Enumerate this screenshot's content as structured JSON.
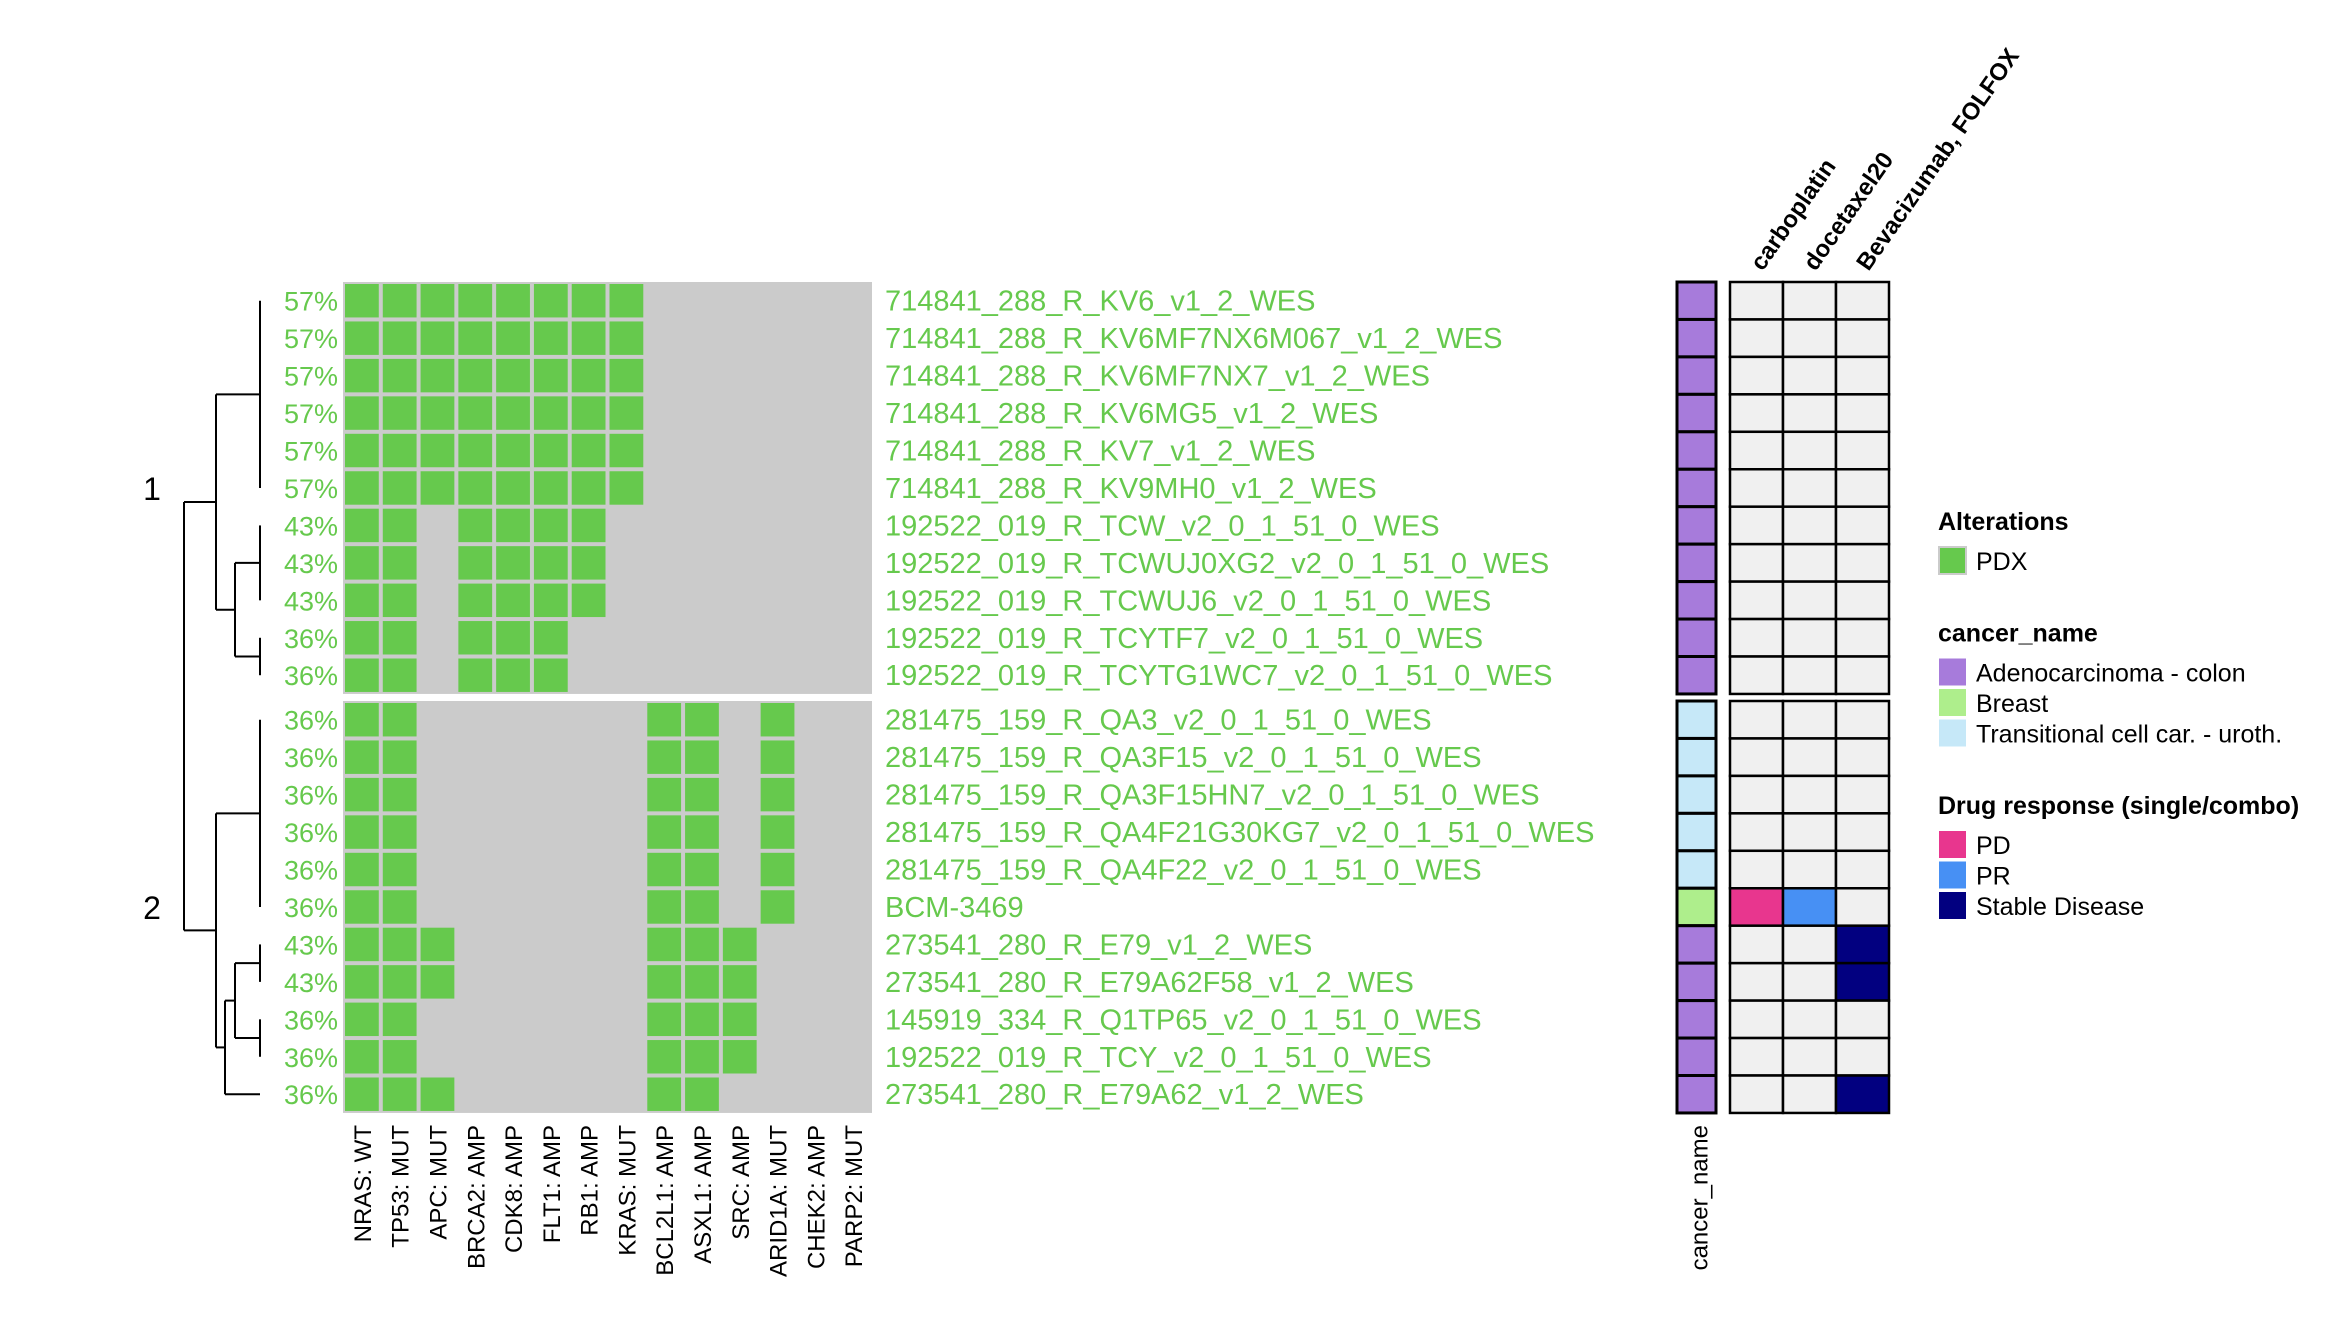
{
  "chart_data": {
    "type": "heatmap",
    "title": "",
    "columns": [
      "NRAS: WT",
      "TP53: MUT",
      "APC: MUT",
      "BRCA2: AMP",
      "CDK8: AMP",
      "FLT1: AMP",
      "RB1: AMP",
      "KRAS: MUT",
      "BCL2L1: AMP",
      "ASXL1: AMP",
      "SRC: AMP",
      "ARID1A: MUT",
      "CHEK2: AMP",
      "PARP2: MUT"
    ],
    "clusters": [
      {
        "label": "1",
        "rows": [
          {
            "sample": "714841_288_R_KV6_v1_2_WES",
            "pct": "57%",
            "alt": [
              1,
              1,
              1,
              1,
              1,
              1,
              1,
              1,
              0,
              0,
              0,
              0,
              0,
              0
            ],
            "cancer": "Adenocarcinoma - colon",
            "drug": [
              "",
              "",
              ""
            ]
          },
          {
            "sample": "714841_288_R_KV6MF7NX6M067_v1_2_WES",
            "pct": "57%",
            "alt": [
              1,
              1,
              1,
              1,
              1,
              1,
              1,
              1,
              0,
              0,
              0,
              0,
              0,
              0
            ],
            "cancer": "Adenocarcinoma - colon",
            "drug": [
              "",
              "",
              ""
            ]
          },
          {
            "sample": "714841_288_R_KV6MF7NX7_v1_2_WES",
            "pct": "57%",
            "alt": [
              1,
              1,
              1,
              1,
              1,
              1,
              1,
              1,
              0,
              0,
              0,
              0,
              0,
              0
            ],
            "cancer": "Adenocarcinoma - colon",
            "drug": [
              "",
              "",
              ""
            ]
          },
          {
            "sample": "714841_288_R_KV6MG5_v1_2_WES",
            "pct": "57%",
            "alt": [
              1,
              1,
              1,
              1,
              1,
              1,
              1,
              1,
              0,
              0,
              0,
              0,
              0,
              0
            ],
            "cancer": "Adenocarcinoma - colon",
            "drug": [
              "",
              "",
              ""
            ]
          },
          {
            "sample": "714841_288_R_KV7_v1_2_WES",
            "pct": "57%",
            "alt": [
              1,
              1,
              1,
              1,
              1,
              1,
              1,
              1,
              0,
              0,
              0,
              0,
              0,
              0
            ],
            "cancer": "Adenocarcinoma - colon",
            "drug": [
              "",
              "",
              ""
            ]
          },
          {
            "sample": "714841_288_R_KV9MH0_v1_2_WES",
            "pct": "57%",
            "alt": [
              1,
              1,
              1,
              1,
              1,
              1,
              1,
              1,
              0,
              0,
              0,
              0,
              0,
              0
            ],
            "cancer": "Adenocarcinoma - colon",
            "drug": [
              "",
              "",
              ""
            ]
          },
          {
            "sample": "192522_019_R_TCW_v2_0_1_51_0_WES",
            "pct": "43%",
            "alt": [
              1,
              1,
              0,
              1,
              1,
              1,
              1,
              0,
              0,
              0,
              0,
              0,
              0,
              0
            ],
            "cancer": "Adenocarcinoma - colon",
            "drug": [
              "",
              "",
              ""
            ]
          },
          {
            "sample": "192522_019_R_TCWUJ0XG2_v2_0_1_51_0_WES",
            "pct": "43%",
            "alt": [
              1,
              1,
              0,
              1,
              1,
              1,
              1,
              0,
              0,
              0,
              0,
              0,
              0,
              0
            ],
            "cancer": "Adenocarcinoma - colon",
            "drug": [
              "",
              "",
              ""
            ]
          },
          {
            "sample": "192522_019_R_TCWUJ6_v2_0_1_51_0_WES",
            "pct": "43%",
            "alt": [
              1,
              1,
              0,
              1,
              1,
              1,
              1,
              0,
              0,
              0,
              0,
              0,
              0,
              0
            ],
            "cancer": "Adenocarcinoma - colon",
            "drug": [
              "",
              "",
              ""
            ]
          },
          {
            "sample": "192522_019_R_TCYTF7_v2_0_1_51_0_WES",
            "pct": "36%",
            "alt": [
              1,
              1,
              0,
              1,
              1,
              1,
              0,
              0,
              0,
              0,
              0,
              0,
              0,
              0
            ],
            "cancer": "Adenocarcinoma - colon",
            "drug": [
              "",
              "",
              ""
            ]
          },
          {
            "sample": "192522_019_R_TCYTG1WC7_v2_0_1_51_0_WES",
            "pct": "36%",
            "alt": [
              1,
              1,
              0,
              1,
              1,
              1,
              0,
              0,
              0,
              0,
              0,
              0,
              0,
              0
            ],
            "cancer": "Adenocarcinoma - colon",
            "drug": [
              "",
              "",
              ""
            ]
          }
        ]
      },
      {
        "label": "2",
        "rows": [
          {
            "sample": "281475_159_R_QA3_v2_0_1_51_0_WES",
            "pct": "36%",
            "alt": [
              1,
              1,
              0,
              0,
              0,
              0,
              0,
              0,
              1,
              1,
              0,
              1,
              0,
              0
            ],
            "cancer": "Transitional cell car. - uroth.",
            "drug": [
              "",
              "",
              ""
            ]
          },
          {
            "sample": "281475_159_R_QA3F15_v2_0_1_51_0_WES",
            "pct": "36%",
            "alt": [
              1,
              1,
              0,
              0,
              0,
              0,
              0,
              0,
              1,
              1,
              0,
              1,
              0,
              0
            ],
            "cancer": "Transitional cell car. - uroth.",
            "drug": [
              "",
              "",
              ""
            ]
          },
          {
            "sample": "281475_159_R_QA3F15HN7_v2_0_1_51_0_WES",
            "pct": "36%",
            "alt": [
              1,
              1,
              0,
              0,
              0,
              0,
              0,
              0,
              1,
              1,
              0,
              1,
              0,
              0
            ],
            "cancer": "Transitional cell car. - uroth.",
            "drug": [
              "",
              "",
              ""
            ]
          },
          {
            "sample": "281475_159_R_QA4F21G30KG7_v2_0_1_51_0_WES",
            "pct": "36%",
            "alt": [
              1,
              1,
              0,
              0,
              0,
              0,
              0,
              0,
              1,
              1,
              0,
              1,
              0,
              0
            ],
            "cancer": "Transitional cell car. - uroth.",
            "drug": [
              "",
              "",
              ""
            ]
          },
          {
            "sample": "281475_159_R_QA4F22_v2_0_1_51_0_WES",
            "pct": "36%",
            "alt": [
              1,
              1,
              0,
              0,
              0,
              0,
              0,
              0,
              1,
              1,
              0,
              1,
              0,
              0
            ],
            "cancer": "Transitional cell car. - uroth.",
            "drug": [
              "",
              "",
              ""
            ]
          },
          {
            "sample": "BCM-3469",
            "pct": "36%",
            "alt": [
              1,
              1,
              0,
              0,
              0,
              0,
              0,
              0,
              1,
              1,
              0,
              1,
              0,
              0
            ],
            "cancer": "Breast",
            "drug": [
              "PD",
              "PR",
              ""
            ]
          },
          {
            "sample": "273541_280_R_E79_v1_2_WES",
            "pct": "43%",
            "alt": [
              1,
              1,
              1,
              0,
              0,
              0,
              0,
              0,
              1,
              1,
              1,
              0,
              0,
              0
            ],
            "cancer": "Adenocarcinoma - colon",
            "drug": [
              "",
              "",
              "Stable Disease"
            ]
          },
          {
            "sample": "273541_280_R_E79A62F58_v1_2_WES",
            "pct": "43%",
            "alt": [
              1,
              1,
              1,
              0,
              0,
              0,
              0,
              0,
              1,
              1,
              1,
              0,
              0,
              0
            ],
            "cancer": "Adenocarcinoma - colon",
            "drug": [
              "",
              "",
              "Stable Disease"
            ]
          },
          {
            "sample": "145919_334_R_Q1TP65_v2_0_1_51_0_WES",
            "pct": "36%",
            "alt": [
              1,
              1,
              0,
              0,
              0,
              0,
              0,
              0,
              1,
              1,
              1,
              0,
              0,
              0
            ],
            "cancer": "Adenocarcinoma - colon",
            "drug": [
              "",
              "",
              ""
            ]
          },
          {
            "sample": "192522_019_R_TCY_v2_0_1_51_0_WES",
            "pct": "36%",
            "alt": [
              1,
              1,
              0,
              0,
              0,
              0,
              0,
              0,
              1,
              1,
              1,
              0,
              0,
              0
            ],
            "cancer": "Adenocarcinoma - colon",
            "drug": [
              "",
              "",
              ""
            ]
          },
          {
            "sample": "273541_280_R_E79A62_v1_2_WES",
            "pct": "36%",
            "alt": [
              1,
              1,
              1,
              0,
              0,
              0,
              0,
              0,
              1,
              1,
              0,
              0,
              0,
              0
            ],
            "cancer": "Adenocarcinoma - colon",
            "drug": [
              "",
              "",
              "Stable Disease"
            ]
          }
        ]
      }
    ],
    "annotation_column_label": "cancer_name",
    "drug_columns": [
      "carboplatin",
      "docetaxel20",
      "Bevacizumab, FOLFOX"
    ],
    "legends": [
      {
        "title": "Alterations",
        "items": [
          {
            "label": "PDX",
            "color": "#66c94d"
          }
        ]
      },
      {
        "title": "cancer_name",
        "items": [
          {
            "label": "Adenocarcinoma - colon",
            "color": "#a77bdb"
          },
          {
            "label": "Breast",
            "color": "#aeee8c"
          },
          {
            "label": "Transitional cell car. - uroth.",
            "color": "#c6e8f8"
          }
        ]
      },
      {
        "title": "Drug response (single/combo)",
        "items": [
          {
            "label": "PD",
            "color": "#e8368e"
          },
          {
            "label": "PR",
            "color": "#4790f4"
          },
          {
            "label": "Stable Disease",
            "color": "#020080"
          }
        ]
      }
    ],
    "colors": {
      "altered": "#66c94d",
      "background": "#cbcbcb",
      "drug_empty": "#f0f0f0",
      "label_text": "#66c94d"
    },
    "legend_placement": "right"
  }
}
